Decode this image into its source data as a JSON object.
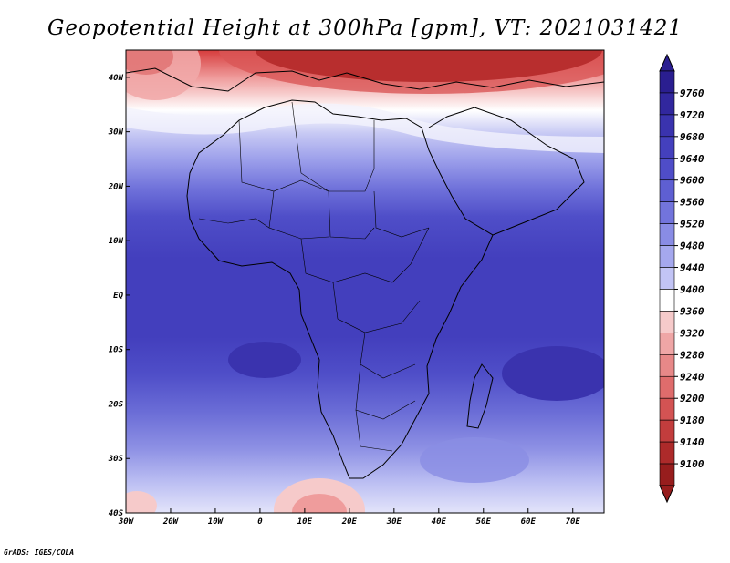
{
  "title": "Geopotential Height at 300hPa [gpm], VT: 2021031421",
  "footer": "GrADS: IGES/COLA",
  "map": {
    "region": "Africa",
    "variable": "Geopotential height",
    "level": "300hPa",
    "units": "gpm",
    "lon_range": [
      -30,
      77
    ],
    "lat_range": [
      -40,
      45
    ],
    "lat_labels": [
      {
        "lat": 40,
        "text": "40N"
      },
      {
        "lat": 30,
        "text": "30N"
      },
      {
        "lat": 20,
        "text": "20N"
      },
      {
        "lat": 10,
        "text": "10N"
      },
      {
        "lat": 0,
        "text": "EQ"
      },
      {
        "lat": -10,
        "text": "10S"
      },
      {
        "lat": -20,
        "text": "20S"
      },
      {
        "lat": -30,
        "text": "30S"
      },
      {
        "lat": -40,
        "text": "40S"
      }
    ],
    "lon_labels": [
      {
        "lon": -30,
        "text": "30W"
      },
      {
        "lon": -20,
        "text": "20W"
      },
      {
        "lon": -10,
        "text": "10W"
      },
      {
        "lon": 0,
        "text": "0"
      },
      {
        "lon": 10,
        "text": "10E"
      },
      {
        "lon": 20,
        "text": "20E"
      },
      {
        "lon": 30,
        "text": "30E"
      },
      {
        "lon": 40,
        "text": "40E"
      },
      {
        "lon": 50,
        "text": "50E"
      },
      {
        "lon": 60,
        "text": "60E"
      },
      {
        "lon": 70,
        "text": "70E"
      }
    ]
  },
  "legend": {
    "levels": [
      "9760",
      "9720",
      "9680",
      "9640",
      "9600",
      "9560",
      "9520",
      "9480",
      "9440",
      "9400",
      "9360",
      "9320",
      "9280",
      "9240",
      "9200",
      "9180",
      "9140",
      "9100"
    ],
    "colors": [
      "#2a1e90",
      "#31279e",
      "#3a33ae",
      "#4440bd",
      "#4f4dc8",
      "#5e5fd2",
      "#7274dc",
      "#898ce5",
      "#a5a8ee",
      "#c2c4f5",
      "#ffffff",
      "#f6caca",
      "#efa6a6",
      "#e78888",
      "#df6c6c",
      "#d35353",
      "#c23d3d",
      "#ad2a2a",
      "#971d1d"
    ],
    "top_color": "#2a1e90",
    "bottom_color": "#971d1d"
  }
}
